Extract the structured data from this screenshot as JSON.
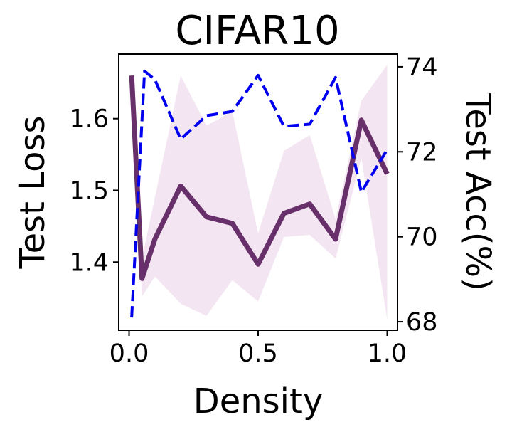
{
  "chart_data": {
    "type": "line",
    "title": "CIFAR10",
    "xlabel": "Density",
    "ylabel_left": "Test Loss",
    "ylabel_right": "Test Acc(%)",
    "xlim": [
      -0.04,
      1.04
    ],
    "ylim_left": [
      1.305,
      1.69
    ],
    "ylim_right": [
      67.8,
      74.3
    ],
    "xticks": [
      0.0,
      0.5,
      1.0
    ],
    "xtick_labels": [
      "0.0",
      "0.5",
      "1.0"
    ],
    "yticks_left": [
      1.4,
      1.5,
      1.6
    ],
    "ytick_labels_left": [
      "1.4",
      "1.5",
      "1.6"
    ],
    "yticks_right": [
      68,
      70,
      72,
      74
    ],
    "ytick_labels_right": [
      "68",
      "70",
      "72",
      "74"
    ],
    "grid": false,
    "series": [
      {
        "axis": "left",
        "style": "solid",
        "color": "#68306a",
        "band_color": "#f3e5f1",
        "x": [
          0.01,
          0.05,
          0.1,
          0.2,
          0.3,
          0.4,
          0.5,
          0.6,
          0.7,
          0.8,
          0.9,
          1.0
        ],
        "values": [
          1.66,
          1.377,
          1.432,
          1.506,
          1.463,
          1.454,
          1.397,
          1.468,
          1.481,
          1.432,
          1.598,
          1.523
        ],
        "band_upper": [
          1.66,
          1.405,
          1.49,
          1.66,
          1.59,
          1.61,
          1.44,
          1.555,
          1.577,
          1.46,
          1.625,
          1.675
        ],
        "band_lower": [
          1.66,
          1.352,
          1.38,
          1.342,
          1.325,
          1.375,
          1.345,
          1.435,
          1.438,
          1.405,
          1.545,
          1.32
        ]
      },
      {
        "axis": "right",
        "style": "dashed",
        "color": "#0000ee",
        "x": [
          0.01,
          0.06,
          0.1,
          0.2,
          0.3,
          0.4,
          0.5,
          0.6,
          0.7,
          0.8,
          0.9,
          1.0
        ],
        "values": [
          68.1,
          73.9,
          73.7,
          72.3,
          72.85,
          72.95,
          73.8,
          72.6,
          72.65,
          73.75,
          71.05,
          72.05
        ]
      }
    ]
  }
}
